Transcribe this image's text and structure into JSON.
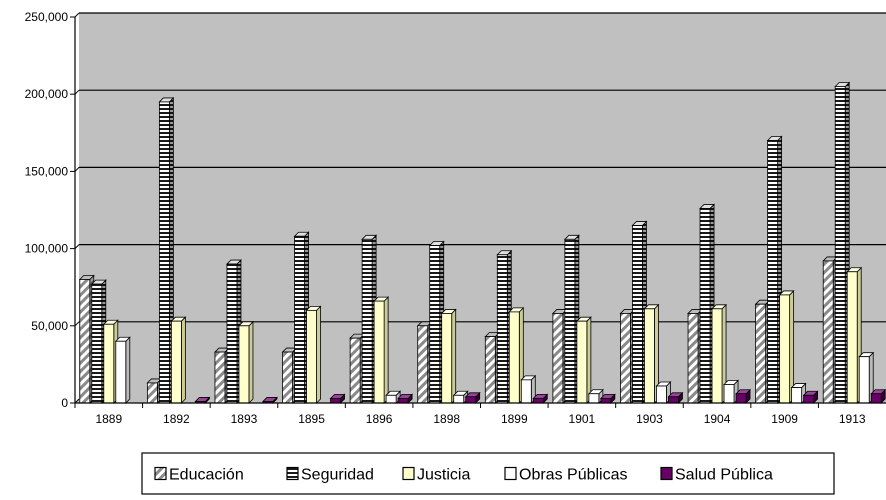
{
  "chart_data": {
    "type": "bar",
    "title": "",
    "xlabel": "",
    "ylabel": "",
    "categories": [
      "1889",
      "1892",
      "1893",
      "1895",
      "1896",
      "1898",
      "1899",
      "1901",
      "1903",
      "1904",
      "1909",
      "1913"
    ],
    "ylim": [
      0,
      250000
    ],
    "yticks": [
      "0",
      "50,000",
      "100,000",
      "150,000",
      "200,000",
      "250,000"
    ],
    "grid": true,
    "legend_position": "bottom",
    "series": [
      {
        "name": "Educación",
        "pattern": "hatch",
        "values": [
          80000,
          13000,
          33000,
          33000,
          42000,
          50000,
          43000,
          58000,
          58000,
          58000,
          64000,
          92000
        ]
      },
      {
        "name": "Seguridad",
        "pattern": "ladder",
        "values": [
          77000,
          195000,
          90000,
          108000,
          106000,
          102000,
          96000,
          106000,
          115000,
          126000,
          170000,
          205000
        ]
      },
      {
        "name": "Justicia",
        "pattern": "solid-yellow",
        "values": [
          51000,
          53000,
          50000,
          60000,
          66000,
          58000,
          59000,
          53000,
          61000,
          61000,
          70000,
          85000
        ]
      },
      {
        "name": "Obras Públicas",
        "pattern": "solid-white",
        "values": [
          40000,
          0,
          0,
          0,
          5000,
          5000,
          15000,
          6000,
          11000,
          12000,
          10000,
          30000
        ]
      },
      {
        "name": "Salud Pública",
        "pattern": "solid-purple",
        "values": [
          0,
          1000,
          1000,
          3000,
          3000,
          4000,
          3000,
          3000,
          4000,
          6000,
          5000,
          6000
        ]
      }
    ],
    "colors": {
      "plot_bg": "#c0c0c0",
      "justicia": "#ffffcc",
      "salud": "#660066",
      "obras": "#ffffff"
    }
  }
}
